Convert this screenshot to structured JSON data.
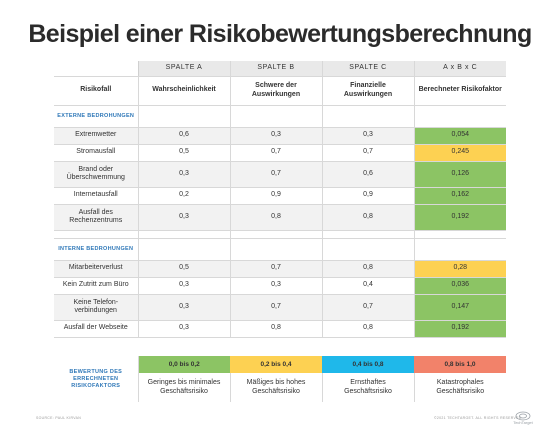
{
  "title": "Beispiel einer Risikobewertungsberechnung",
  "colors": {
    "green": "#8cc464",
    "yellow": "#fdd152",
    "blue": "#2f78b8",
    "band_green": "#8cc464",
    "band_yellow": "#fdd152",
    "band_cyan": "#1fb8ea",
    "band_red": "#f2826a"
  },
  "column_letters": [
    "SPALTE A",
    "SPALTE B",
    "SPALTE C",
    "A x B x C"
  ],
  "column_headers": [
    "Risikofall",
    "Wahrscheinlichkeit",
    "Schwere der Auswirkungen",
    "Finanzielle Auswirkungen",
    "Berechneter Risikofaktor"
  ],
  "sections": [
    {
      "label": "EXTERNE BEDROHUNGEN",
      "rows": [
        {
          "name": "Extremwetter",
          "a": "0,6",
          "b": "0,3",
          "c": "0,3",
          "factor": "0,054",
          "color": "green"
        },
        {
          "name": "Stromausfall",
          "a": "0,5",
          "b": "0,7",
          "c": "0,7",
          "factor": "0,245",
          "color": "yellow"
        },
        {
          "name": "Brand oder Überschwemmung",
          "a": "0,3",
          "b": "0,7",
          "c": "0,6",
          "factor": "0,126",
          "color": "green"
        },
        {
          "name": "Internetausfall",
          "a": "0,2",
          "b": "0,9",
          "c": "0,9",
          "factor": "0,162",
          "color": "green"
        },
        {
          "name": "Ausfall des Rechenzentrums",
          "a": "0,3",
          "b": "0,8",
          "c": "0,8",
          "factor": "0,192",
          "color": "green"
        }
      ]
    },
    {
      "label": "INTERNE BEDROHUNGEN",
      "rows": [
        {
          "name": "Mitarbeiterverlust",
          "a": "0,5",
          "b": "0,7",
          "c": "0,8",
          "factor": "0,28",
          "color": "yellow"
        },
        {
          "name": "Kein Zutritt zum Büro",
          "a": "0,3",
          "b": "0,3",
          "c": "0,4",
          "factor": "0,036",
          "color": "green"
        },
        {
          "name": "Keine Telefon-verbindungen",
          "a": "0,3",
          "b": "0,7",
          "c": "0,7",
          "factor": "0,147",
          "color": "green"
        },
        {
          "name": "Ausfall der Webseite",
          "a": "0,3",
          "b": "0,8",
          "c": "0,8",
          "factor": "0,192",
          "color": "green"
        }
      ]
    }
  ],
  "legend": {
    "label": "BEWERTUNG DES ERRECHNETEN RISIKOFAKTORS",
    "bands": [
      {
        "range": "0,0 bis 0,2",
        "description": "Geringes bis minimales Geschäftsrisiko",
        "color": "band_green"
      },
      {
        "range": "0,2 bis 0,4",
        "description": "Mäßiges bis hohes Geschäftsrisiko",
        "color": "band_yellow"
      },
      {
        "range": "0,4 bis 0,8",
        "description": "Ernsthaftes Geschäftsrisiko",
        "color": "band_cyan"
      },
      {
        "range": "0,8 bis 1,0",
        "description": "Katastrophales Geschäftsrisiko",
        "color": "band_red"
      }
    ]
  },
  "footer": {
    "source": "SOURCE: PAUL KIRVAN",
    "copyright": "©2021 TECHTARGET. ALL RIGHTS RESERVED",
    "logo_text": "TechTarget"
  }
}
